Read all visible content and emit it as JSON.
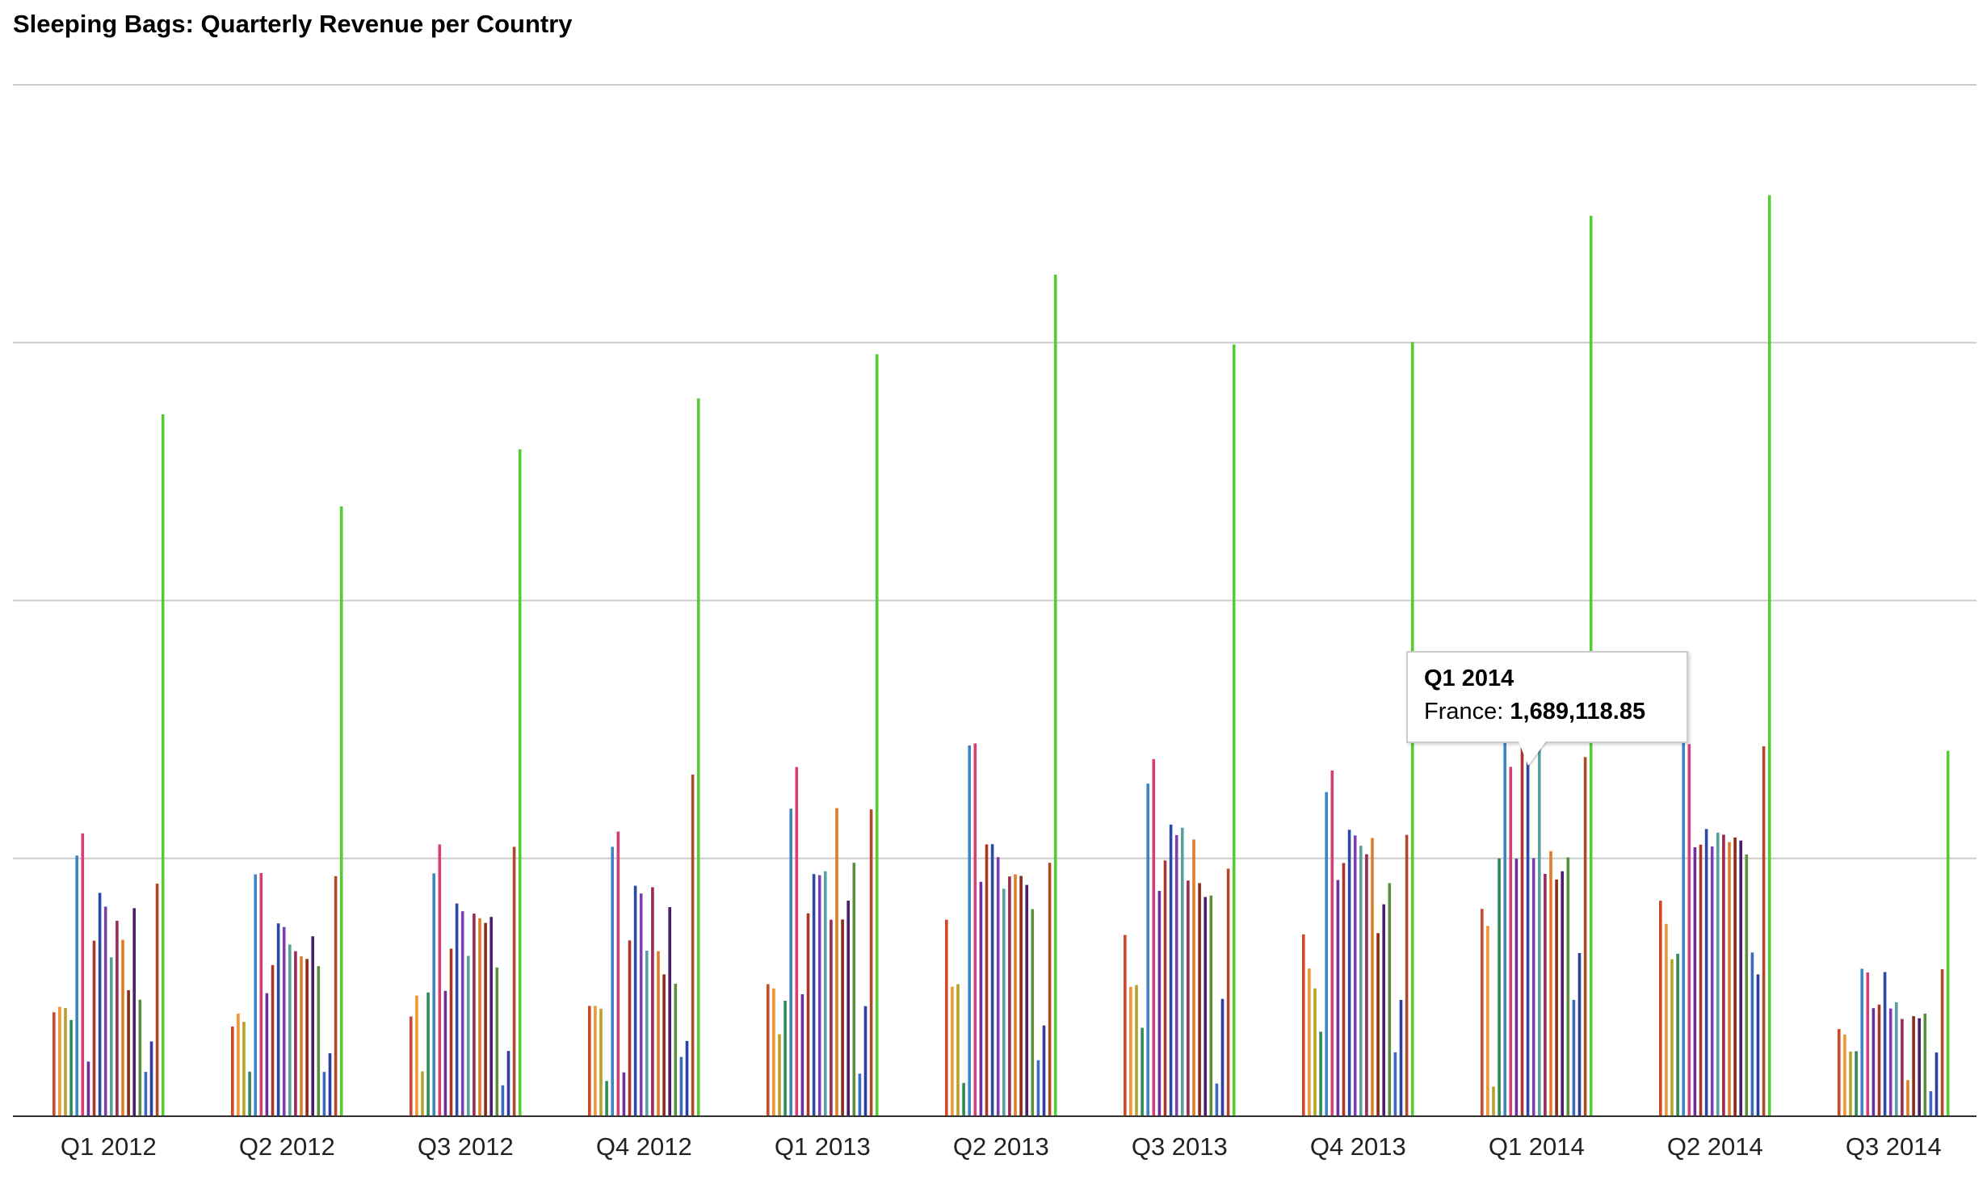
{
  "chart_data": {
    "type": "bar",
    "title": "Sleeping Bags: Quarterly Revenue per Country",
    "xlabel": "",
    "ylabel": "",
    "categories": [
      "Q1 2012",
      "Q2 2012",
      "Q3 2012",
      "Q4 2012",
      "Q1 2013",
      "Q2 2013",
      "Q3 2013",
      "Q4 2013",
      "Q1 2014",
      "Q2 2014",
      "Q3 2014"
    ],
    "ylim": [
      0,
      4000000
    ],
    "grid": true,
    "legend": "none",
    "series": [
      {
        "color": "#d24726",
        "values": [
          403000,
          348000,
          387000,
          428000,
          512000,
          762000,
          703000,
          705000,
          804000,
          836000,
          338000
        ]
      },
      {
        "color": "#f0952f",
        "values": [
          424000,
          398000,
          468000,
          428000,
          496000,
          502000,
          502000,
          573000,
          738000,
          746000,
          317000
        ]
      },
      {
        "color": "#b8a12b",
        "values": [
          420000,
          366000,
          174000,
          417000,
          318000,
          512000,
          509000,
          496000,
          115000,
          609000,
          251000
        ]
      },
      {
        "color": "#2e8b57",
        "values": [
          373000,
          173000,
          480000,
          137000,
          448000,
          129000,
          343000,
          328000,
          1000000,
          630000,
          252000
        ]
      },
      {
        "color": "#3d85c6",
        "values": [
          1011000,
          938000,
          942000,
          1045000,
          1193000,
          1438000,
          1290000,
          1257000,
          1448000,
          1450000,
          572000
        ]
      },
      {
        "color": "#d63e75",
        "values": [
          1097000,
          943000,
          1054000,
          1104000,
          1354000,
          1446000,
          1385000,
          1341000,
          1355000,
          1443000,
          558000
        ]
      },
      {
        "color": "#6b2f9e",
        "values": [
          212000,
          477000,
          486000,
          170000,
          473000,
          909000,
          874000,
          916000,
          999000,
          1043000,
          419000
        ]
      },
      {
        "color": "#a9362a",
        "values": [
          681000,
          586000,
          650000,
          682000,
          787000,
          1054000,
          992000,
          982000,
          1689119,
          1053000,
          433000
        ]
      },
      {
        "color": "#2c4aa5",
        "values": [
          866000,
          748000,
          825000,
          894000,
          939000,
          1055000,
          1131000,
          1111000,
          1454000,
          1114000,
          559000
        ]
      },
      {
        "color": "#7b3fb2",
        "values": [
          813000,
          734000,
          795000,
          864000,
          935000,
          1005000,
          1090000,
          1089000,
          1001000,
          1046000,
          418000
        ]
      },
      {
        "color": "#5aa0a0",
        "values": [
          616000,
          666000,
          622000,
          642000,
          950000,
          882000,
          1119000,
          1049000,
          1443000,
          1100000,
          442000
        ]
      },
      {
        "color": "#9a2b52",
        "values": [
          758000,
          640000,
          786000,
          888000,
          762000,
          930000,
          914000,
          1016000,
          940000,
          1092000,
          377000
        ]
      },
      {
        "color": "#e07d28",
        "values": [
          684000,
          620000,
          768000,
          640000,
          1195000,
          938000,
          1073000,
          1079000,
          1028000,
          1063000,
          140000
        ]
      },
      {
        "color": "#8d2b1a",
        "values": [
          489000,
          610000,
          750000,
          550000,
          763000,
          932000,
          904000,
          710000,
          918000,
          1081000,
          388000
        ]
      },
      {
        "color": "#4b1d6e",
        "values": [
          807000,
          698000,
          773000,
          811000,
          836000,
          897000,
          850000,
          822000,
          950000,
          1069000,
          380000
        ]
      },
      {
        "color": "#5b8f3f",
        "values": [
          452000,
          582000,
          577000,
          514000,
          983000,
          803000,
          856000,
          904000,
          1004000,
          1015000,
          398000
        ]
      },
      {
        "color": "#3b6bc0",
        "values": [
          172000,
          172000,
          120000,
          230000,
          165000,
          217000,
          127000,
          248000,
          451000,
          635000,
          97000
        ]
      },
      {
        "color": "#2e3d9e",
        "values": [
          290000,
          244000,
          253000,
          292000,
          427000,
          352000,
          455000,
          451000,
          633000,
          550000,
          247000
        ]
      },
      {
        "color": "#b0492b",
        "values": [
          902000,
          931000,
          1045000,
          1325000,
          1190000,
          983000,
          960000,
          1091000,
          1393000,
          1435000,
          570000
        ]
      },
      {
        "color": "#55cc33",
        "values": [
          2722000,
          2365000,
          2586000,
          2784000,
          2955000,
          3264000,
          2993000,
          3003000,
          3492000,
          3572000,
          1417000
        ]
      }
    ]
  },
  "tooltip": {
    "title": "Q1 2014",
    "series_label": "France:",
    "value": "1,689,118.85"
  }
}
